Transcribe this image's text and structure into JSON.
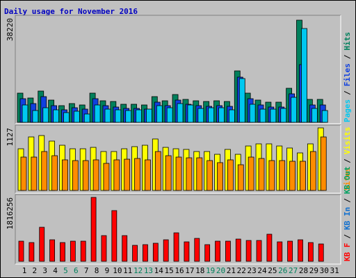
{
  "chart_data": [
    {
      "type": "bar",
      "title": "Daily usage for November 2016",
      "series": [
        {
          "name": "Hits",
          "color": "#00805c",
          "values": [
            10920,
            9100,
            11700,
            8320,
            6240,
            7020,
            6500,
            10920,
            8060,
            7800,
            6760,
            6760,
            6500,
            9620,
            8060,
            10400,
            8580,
            8060,
            7800,
            8060,
            7800,
            19240,
            10920,
            8320,
            7540,
            7540,
            12740,
            38220,
            8580,
            8580,
            0
          ]
        },
        {
          "name": "Files",
          "color": "#1040e0",
          "values": [
            8840,
            7020,
            9620,
            6240,
            4680,
            5460,
            4940,
            8840,
            6240,
            5720,
            5200,
            5200,
            4940,
            7540,
            6240,
            8320,
            6760,
            6240,
            5980,
            6240,
            5980,
            16900,
            8840,
            6500,
            5720,
            5720,
            10660,
            21580,
            6500,
            6500,
            0
          ]
        },
        {
          "name": "Pages",
          "color": "#00c8f0",
          "values": [
            6500,
            4420,
            5460,
            4680,
            3640,
            4160,
            3120,
            6500,
            4940,
            4680,
            4420,
            4680,
            4940,
            6240,
            5460,
            7020,
            6500,
            5200,
            5460,
            5460,
            4680,
            16380,
            6760,
            4940,
            4940,
            5200,
            9360,
            35100,
            5200,
            4420,
            0
          ]
        }
      ],
      "separator": "/",
      "ylim": [
        0,
        38220
      ],
      "yticks": [
        38220
      ]
    },
    {
      "type": "bar",
      "series": [
        {
          "name": "Visits",
          "color": "#ffff00",
          "values": [
            751,
            964,
            989,
            889,
            814,
            751,
            751,
            776,
            701,
            701,
            751,
            789,
            814,
            927,
            776,
            751,
            739,
            701,
            701,
            651,
            739,
            651,
            801,
            839,
            839,
            801,
            764,
            676,
            839,
            1127,
            0
          ]
        },
        {
          "name": "Sites",
          "color": "#ff8c00",
          "values": [
            601,
            601,
            701,
            626,
            551,
            538,
            538,
            551,
            488,
            551,
            563,
            576,
            551,
            701,
            626,
            601,
            588,
            588,
            538,
            501,
            551,
            463,
            601,
            576,
            538,
            538,
            526,
            526,
            701,
            964,
            0
          ]
        }
      ],
      "separator": "/",
      "ylim": [
        0,
        1127
      ],
      "yticks": [
        1127
      ]
    },
    {
      "type": "bar",
      "series": [
        {
          "name": "KB F",
          "color": "#ff0000",
          "values": [
            572518,
            533034,
            967358,
            612002,
            533034,
            572518,
            572518,
            1816256,
            730454,
            1441166,
            730454,
            454066,
            473808,
            513292,
            612002,
            809422,
            552776,
            651486,
            473808,
            572518,
            572518,
            631744,
            592260,
            592260,
            769938,
            552776,
            572518,
            612002,
            533034,
            493550,
            0
          ]
        }
      ],
      "extra_legend": [
        {
          "name": "KB In",
          "color": "#1070d0"
        },
        {
          "name": "KB Out",
          "color": "#00a060"
        }
      ],
      "separator": "/",
      "ylim": [
        0,
        1816256
      ],
      "yticks": [
        1816256
      ],
      "categories": [
        "1",
        "2",
        "3",
        "4",
        "5",
        "6",
        "7",
        "8",
        "9",
        "10",
        "11",
        "12",
        "13",
        "14",
        "15",
        "16",
        "17",
        "18",
        "19",
        "20",
        "21",
        "22",
        "23",
        "24",
        "25",
        "26",
        "27",
        "28",
        "29",
        "30",
        "31"
      ],
      "category_colors": [
        "#000000",
        "#000000",
        "#000000",
        "#000000",
        "#00805c",
        "#00805c",
        "#000000",
        "#000000",
        "#000000",
        "#000000",
        "#000000",
        "#00805c",
        "#00805c",
        "#000000",
        "#000000",
        "#000000",
        "#000000",
        "#000000",
        "#00805c",
        "#00805c",
        "#000000",
        "#000000",
        "#000000",
        "#000000",
        "#000000",
        "#00805c",
        "#00805c",
        "#000000",
        "#000000",
        "#000000",
        "#000000"
      ]
    }
  ]
}
